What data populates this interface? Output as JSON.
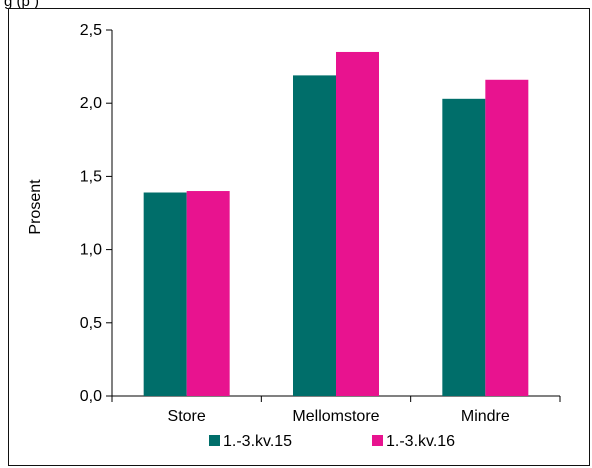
{
  "header": {
    "title": "g                                    (p                  )"
  },
  "chart_data": {
    "type": "bar",
    "title": "",
    "xlabel": "",
    "ylabel": "Prosent",
    "categories": [
      "Store",
      "Mellomstore",
      "Mindre"
    ],
    "series": [
      {
        "name": "1.-3.kv.15",
        "values": [
          1.39,
          2.19,
          2.03
        ],
        "color": "#006e6a"
      },
      {
        "name": "1.-3.kv.16",
        "values": [
          1.4,
          2.35,
          2.16
        ],
        "color": "#e8138f"
      }
    ],
    "ylim": [
      0,
      2.5
    ],
    "yticks": [
      "0,0",
      "0,5",
      "1,0",
      "1,5",
      "2,0",
      "2,5"
    ],
    "grid": false,
    "legend_position": "bottom"
  }
}
